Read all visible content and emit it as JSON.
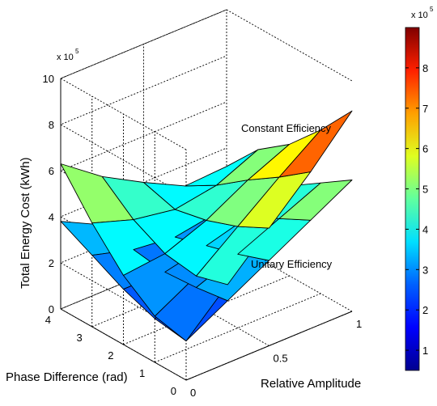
{
  "chart_data": {
    "type": "surface3d",
    "zlabel": "Total Energy Cost (kWh)",
    "xlabel": "Relative Amplitude",
    "ylabel": "Phase Difference (rad)",
    "z_multiplier": "x 10",
    "z_multiplier_exp": "5",
    "colorbar_multiplier": "x 10",
    "colorbar_multiplier_exp": "5",
    "xlim": [
      0,
      1
    ],
    "ylim": [
      0,
      4
    ],
    "zlim": [
      0,
      10
    ],
    "x_ticks": [
      "0",
      "0.5",
      "1"
    ],
    "y_ticks": [
      "0",
      "1",
      "2",
      "3",
      "4"
    ],
    "z_ticks": [
      "0",
      "2",
      "4",
      "6",
      "8",
      "10"
    ],
    "colorbar_ticks": [
      "1",
      "2",
      "3",
      "4",
      "5",
      "6",
      "7",
      "8"
    ],
    "color_range": [
      0.5,
      9
    ],
    "colormap": "jet",
    "x": [
      0,
      0.25,
      0.5,
      0.75,
      1
    ],
    "y": [
      0,
      1,
      2,
      3,
      4
    ],
    "series": [
      {
        "name": "Constant Efficiency",
        "z": [
          [
            1.7,
            3.4,
            5.1,
            6.8,
            8.7
          ],
          [
            2.0,
            3.0,
            4.4,
            5.8,
            7.1
          ],
          [
            3.0,
            3.2,
            3.9,
            4.9,
            5.7
          ],
          [
            4.5,
            3.9,
            3.6,
            3.9,
            4.7
          ],
          [
            6.3,
            5.0,
            4.0,
            3.1,
            3.2
          ]
        ]
      },
      {
        "name": "Unitary Efficiency",
        "z": [
          [
            1.7,
            2.7,
            3.7,
            4.7,
            5.7
          ],
          [
            1.9,
            2.5,
            3.2,
            4.0,
            4.8
          ],
          [
            2.4,
            2.4,
            2.8,
            3.3,
            3.9
          ],
          [
            3.1,
            2.6,
            2.4,
            2.7,
            3.0
          ],
          [
            3.8,
            2.9,
            2.2,
            2.0,
            2.0
          ]
        ]
      }
    ],
    "annotations": [
      "Constant Efficiency",
      "Unitary Efficiency"
    ]
  }
}
